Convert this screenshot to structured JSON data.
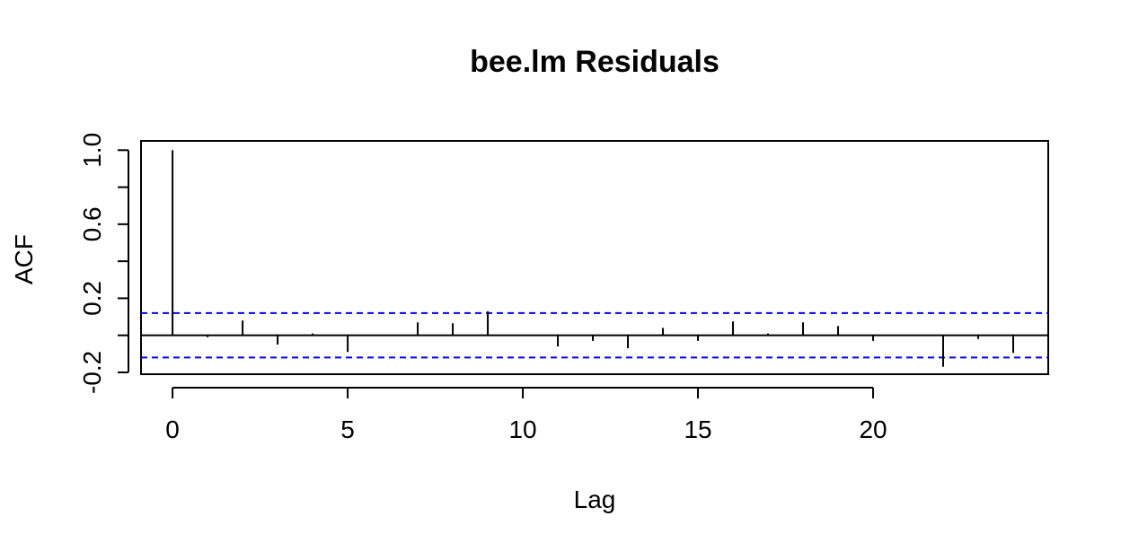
{
  "chart_data": {
    "type": "bar",
    "title": "bee.lm Residuals",
    "xlabel": "Lag",
    "ylabel": "ACF",
    "x": [
      0,
      1,
      2,
      3,
      4,
      5,
      6,
      7,
      8,
      9,
      10,
      11,
      12,
      13,
      14,
      15,
      16,
      17,
      18,
      19,
      20,
      21,
      22,
      23,
      24
    ],
    "values": [
      1.0,
      -0.01,
      0.08,
      -0.05,
      0.01,
      -0.09,
      0.0,
      0.07,
      0.065,
      0.13,
      0.0,
      -0.06,
      -0.03,
      -0.07,
      0.04,
      -0.03,
      0.075,
      0.01,
      0.07,
      0.05,
      -0.03,
      0.0,
      -0.17,
      -0.02,
      -0.095
    ],
    "confidence_bound": 0.12,
    "xlim": [
      -0.9,
      25
    ],
    "ylim": [
      -0.21,
      1.05
    ],
    "xticks": [
      0,
      5,
      10,
      15,
      20
    ],
    "yticks": [
      -0.2,
      0.0,
      0.2,
      0.4,
      0.6,
      0.8,
      1.0
    ],
    "ytick_labels": [
      "-0.2",
      "",
      "0.2",
      "",
      "0.6",
      "",
      "1.0"
    ],
    "colors": {
      "bars": "#000000",
      "bounds": "#0000ff",
      "zero_line": "#000000"
    }
  }
}
